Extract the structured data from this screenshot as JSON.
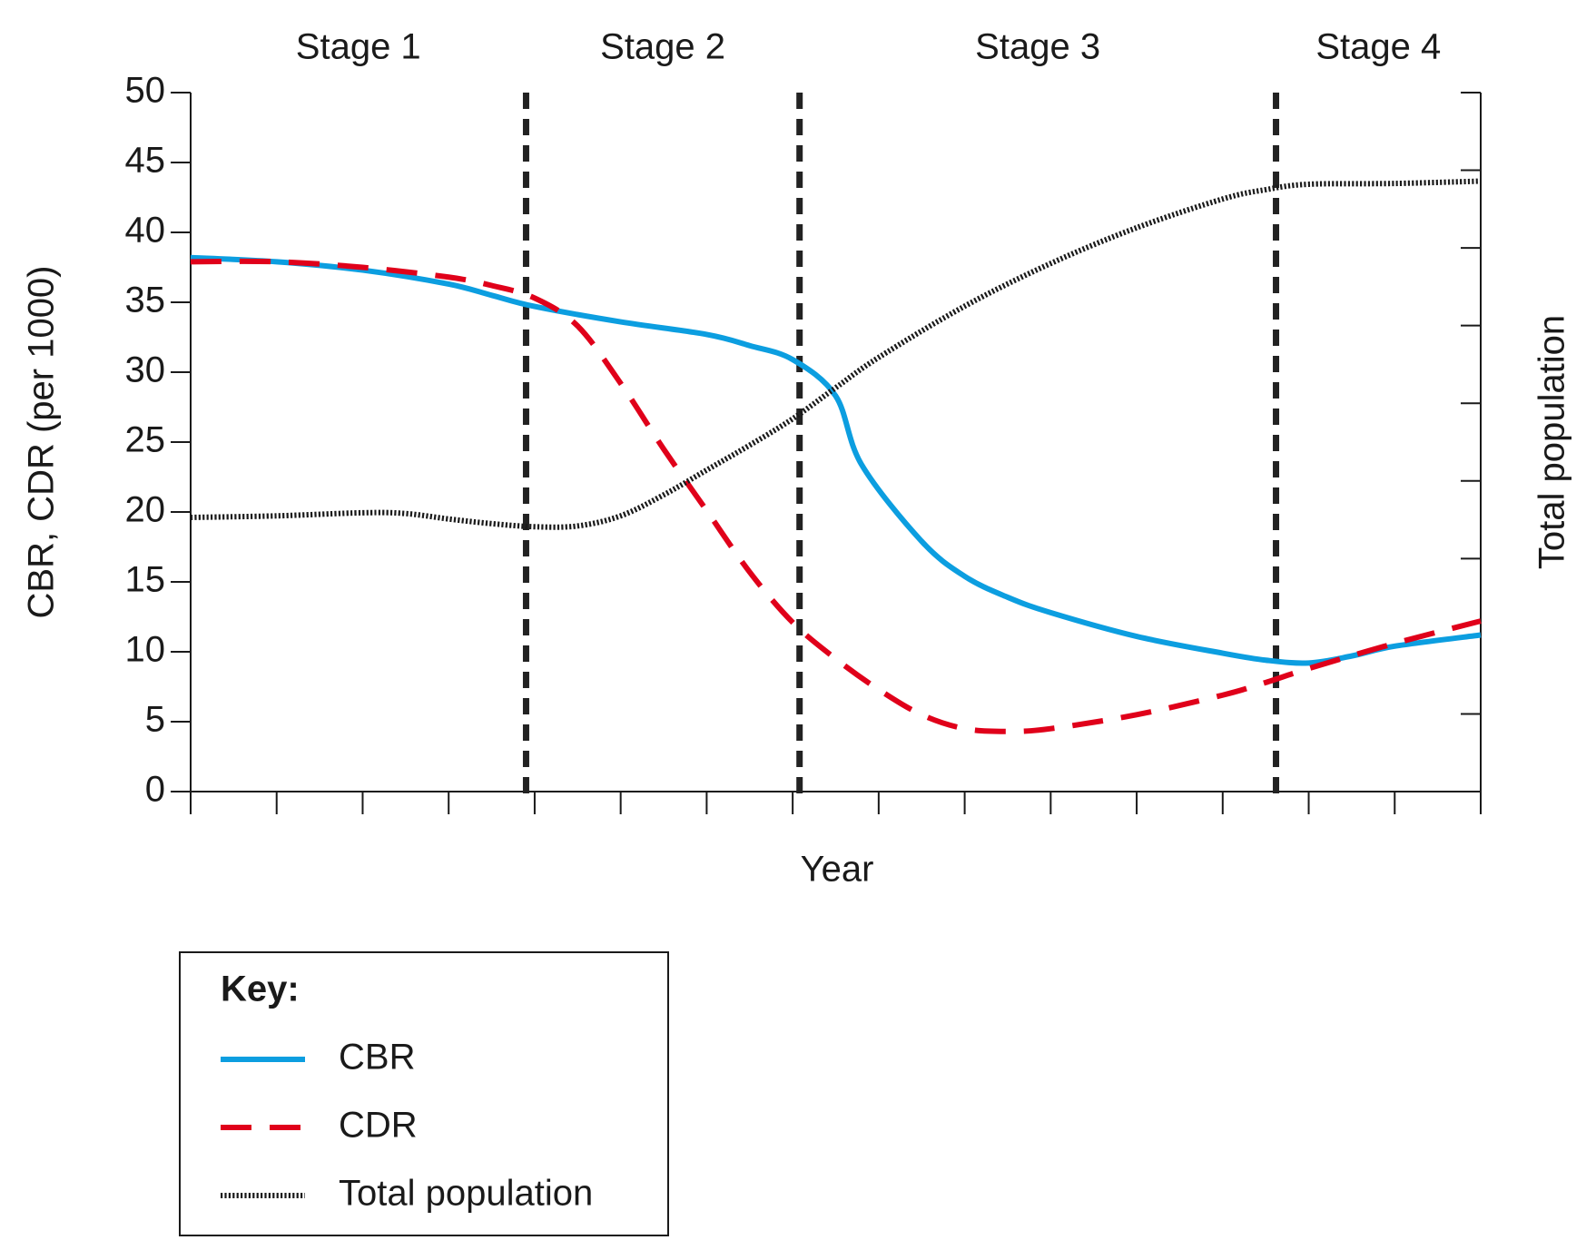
{
  "chart_data": {
    "type": "line",
    "x_label": "Year",
    "y_label": "CBR, CDR (per 1000)",
    "y2_label": "Total population",
    "xlim": [
      0,
      15
    ],
    "xticks": [
      0,
      1,
      2,
      3,
      4,
      5,
      6,
      7,
      8,
      9,
      10,
      11,
      12,
      13,
      14,
      15
    ],
    "ylim": [
      0,
      50
    ],
    "yticks": [
      0,
      5,
      10,
      15,
      20,
      25,
      30,
      35,
      40,
      45,
      50
    ],
    "y2lim": [
      0,
      9
    ],
    "y2ticks": [
      0,
      1,
      2,
      3,
      4,
      5,
      6,
      7,
      8,
      9
    ],
    "stage_boundaries": [
      3.9,
      7.08,
      12.62
    ],
    "stages": [
      "Stage 1",
      "Stage 2",
      "Stage 3",
      "Stage 4"
    ],
    "legend_title": "Key:",
    "series": [
      {
        "name": "CBR",
        "color": "#0c9ee0",
        "style": "solid",
        "x": [
          0,
          1,
          2,
          3,
          3.5,
          4,
          5,
          6,
          6.5,
          7,
          7.5,
          7.8,
          8.5,
          9,
          9.5,
          10,
          11,
          12,
          12.5,
          13,
          13.5,
          14,
          15
        ],
        "values": [
          38.2,
          37.9,
          37.3,
          36.3,
          35.5,
          34.7,
          33.6,
          32.7,
          31.9,
          30.9,
          28.3,
          23.4,
          17.9,
          15.4,
          13.9,
          12.8,
          11.1,
          9.9,
          9.4,
          9.2,
          9.7,
          10.4,
          11.2
        ]
      },
      {
        "name": "CDR",
        "color": "#e0001a",
        "style": "dashed",
        "x": [
          0,
          1,
          2,
          3,
          3.5,
          4,
          4.5,
          5,
          5.5,
          6,
          6.5,
          7,
          7.5,
          8,
          8.5,
          9,
          9.5,
          10,
          11,
          12,
          12.5,
          13,
          14,
          15
        ],
        "values": [
          37.9,
          37.9,
          37.5,
          36.8,
          36.2,
          35.3,
          33.3,
          29.2,
          24.5,
          20.1,
          15.7,
          12.1,
          9.5,
          7.3,
          5.5,
          4.5,
          4.3,
          4.5,
          5.5,
          6.9,
          7.8,
          8.8,
          10.6,
          12.2
        ]
      },
      {
        "name": "Total population",
        "color": "#1a1a1a",
        "style": "dotted",
        "axis": "y2",
        "x": [
          0,
          1,
          2,
          2.5,
          3,
          3.5,
          4,
          4.5,
          5,
          5.5,
          6,
          6.5,
          7,
          7.5,
          8,
          9,
          10,
          11,
          12,
          12.5,
          13,
          14,
          15
        ],
        "values": [
          3.53,
          3.55,
          3.59,
          3.58,
          3.51,
          3.45,
          3.41,
          3.42,
          3.55,
          3.82,
          4.14,
          4.46,
          4.8,
          5.2,
          5.59,
          6.25,
          6.8,
          7.26,
          7.63,
          7.75,
          7.82,
          7.83,
          7.86
        ]
      }
    ]
  }
}
